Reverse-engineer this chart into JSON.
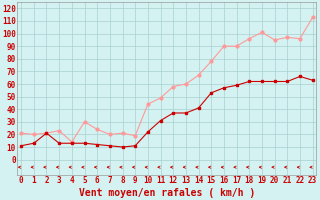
{
  "x": [
    0,
    1,
    2,
    3,
    4,
    5,
    6,
    7,
    8,
    9,
    10,
    11,
    12,
    13,
    14,
    15,
    16,
    17,
    18,
    19,
    20,
    21,
    22,
    23
  ],
  "y_mean": [
    11,
    13,
    21,
    13,
    13,
    13,
    12,
    11,
    10,
    11,
    22,
    31,
    37,
    37,
    41,
    53,
    57,
    59,
    62,
    62,
    62,
    62,
    66,
    63
  ],
  "y_gust": [
    21,
    20,
    21,
    23,
    14,
    30,
    24,
    20,
    21,
    19,
    44,
    49,
    58,
    60,
    67,
    78,
    90,
    90,
    96,
    101,
    95,
    97,
    96,
    113
  ],
  "background_color": "#d4f2f2",
  "grid_color": "#aacfcf",
  "mean_color": "#cc0000",
  "gust_color": "#ff9999",
  "arrow_color": "#cc0000",
  "label_color": "#cc0000",
  "xlabel": "Vent moyen/en rafales ( km/h )",
  "ylim_min": 0,
  "ylim_max": 125,
  "yticks": [
    0,
    10,
    20,
    30,
    40,
    50,
    60,
    70,
    80,
    90,
    100,
    110,
    120
  ],
  "xlim_min": -0.3,
  "xlim_max": 23.3,
  "tick_fontsize": 5.5,
  "label_fontsize": 7
}
